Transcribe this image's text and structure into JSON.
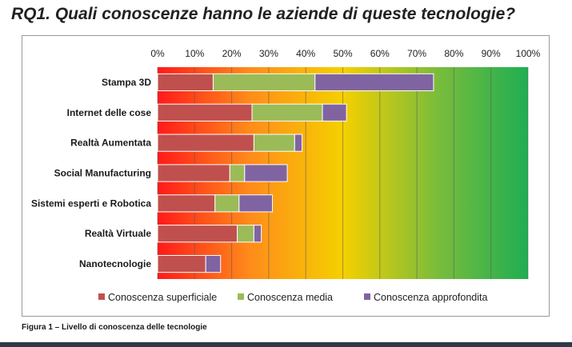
{
  "title": "RQ1. Quali conoscenze hanno le aziende di queste tecnologie?",
  "caption": "Figura 1 – Livello di conoscenza delle tecnologie",
  "chart_data": {
    "type": "bar",
    "orientation": "horizontal",
    "stacked": true,
    "categories": [
      "Stampa 3D",
      "Internet delle cose",
      "Realtà Aumentata",
      "Social Manufacturing",
      "Sistemi esperti e Robotica",
      "Realtà Virtuale",
      "Nanotecnologie"
    ],
    "series": [
      {
        "name": "Conoscenza superficiale",
        "color": "#c0504d",
        "values": [
          15,
          25.5,
          26,
          19.5,
          15.5,
          21.5,
          13
        ]
      },
      {
        "name": "Conoscenza media",
        "color": "#9bbb59",
        "values": [
          27.5,
          19,
          11,
          4,
          6.5,
          4.5,
          0
        ]
      },
      {
        "name": "Conoscenza approfondita",
        "color": "#8064a2",
        "values": [
          32,
          6.5,
          2,
          11.5,
          9,
          2,
          4
        ]
      }
    ],
    "x_ticks": [
      "0%",
      "10%",
      "20%",
      "30%",
      "40%",
      "50%",
      "60%",
      "70%",
      "80%",
      "90%",
      "100%"
    ],
    "xlim": [
      0,
      100
    ],
    "unit": "%",
    "grid": true,
    "legend_position": "bottom",
    "background_gradient": [
      "#ff1a1a",
      "#ff8c1a",
      "#f5d000",
      "#7cbd3a",
      "#1fae52"
    ]
  }
}
